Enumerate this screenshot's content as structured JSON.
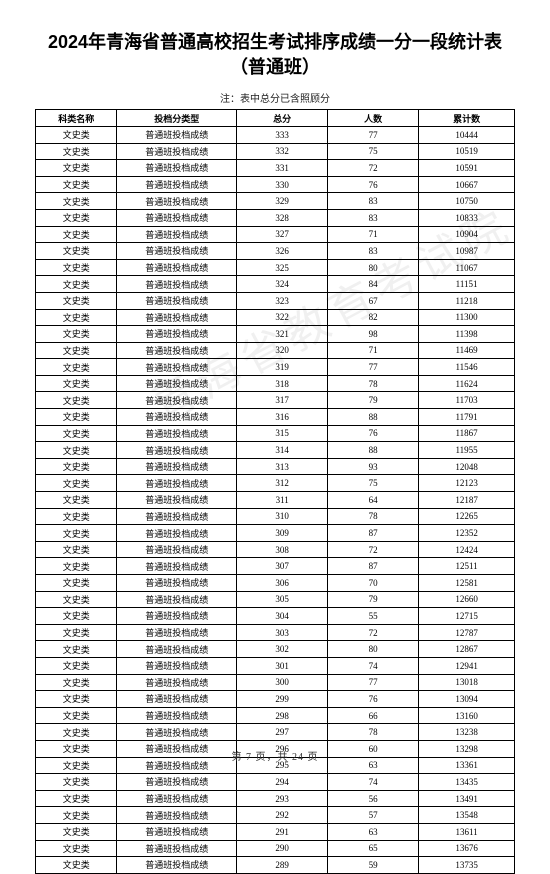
{
  "title_line1": "2024年青海省普通高校招生考试排序成绩一分一段统计表",
  "title_line2": "（普通班）",
  "note": "注：表中总分已含照顾分",
  "watermark": "青海省教育考试院",
  "headers": {
    "c1": "科类名称",
    "c2": "投档分类型",
    "c3": "总分",
    "c4": "人数",
    "c5": "累计数"
  },
  "rows": [
    {
      "c1": "文史类",
      "c2": "普通班投档成绩",
      "c3": "333",
      "c4": "77",
      "c5": "10444"
    },
    {
      "c1": "文史类",
      "c2": "普通班投档成绩",
      "c3": "332",
      "c4": "75",
      "c5": "10519"
    },
    {
      "c1": "文史类",
      "c2": "普通班投档成绩",
      "c3": "331",
      "c4": "72",
      "c5": "10591"
    },
    {
      "c1": "文史类",
      "c2": "普通班投档成绩",
      "c3": "330",
      "c4": "76",
      "c5": "10667"
    },
    {
      "c1": "文史类",
      "c2": "普通班投档成绩",
      "c3": "329",
      "c4": "83",
      "c5": "10750"
    },
    {
      "c1": "文史类",
      "c2": "普通班投档成绩",
      "c3": "328",
      "c4": "83",
      "c5": "10833"
    },
    {
      "c1": "文史类",
      "c2": "普通班投档成绩",
      "c3": "327",
      "c4": "71",
      "c5": "10904"
    },
    {
      "c1": "文史类",
      "c2": "普通班投档成绩",
      "c3": "326",
      "c4": "83",
      "c5": "10987"
    },
    {
      "c1": "文史类",
      "c2": "普通班投档成绩",
      "c3": "325",
      "c4": "80",
      "c5": "11067"
    },
    {
      "c1": "文史类",
      "c2": "普通班投档成绩",
      "c3": "324",
      "c4": "84",
      "c5": "11151"
    },
    {
      "c1": "文史类",
      "c2": "普通班投档成绩",
      "c3": "323",
      "c4": "67",
      "c5": "11218"
    },
    {
      "c1": "文史类",
      "c2": "普通班投档成绩",
      "c3": "322",
      "c4": "82",
      "c5": "11300"
    },
    {
      "c1": "文史类",
      "c2": "普通班投档成绩",
      "c3": "321",
      "c4": "98",
      "c5": "11398"
    },
    {
      "c1": "文史类",
      "c2": "普通班投档成绩",
      "c3": "320",
      "c4": "71",
      "c5": "11469"
    },
    {
      "c1": "文史类",
      "c2": "普通班投档成绩",
      "c3": "319",
      "c4": "77",
      "c5": "11546"
    },
    {
      "c1": "文史类",
      "c2": "普通班投档成绩",
      "c3": "318",
      "c4": "78",
      "c5": "11624"
    },
    {
      "c1": "文史类",
      "c2": "普通班投档成绩",
      "c3": "317",
      "c4": "79",
      "c5": "11703"
    },
    {
      "c1": "文史类",
      "c2": "普通班投档成绩",
      "c3": "316",
      "c4": "88",
      "c5": "11791"
    },
    {
      "c1": "文史类",
      "c2": "普通班投档成绩",
      "c3": "315",
      "c4": "76",
      "c5": "11867"
    },
    {
      "c1": "文史类",
      "c2": "普通班投档成绩",
      "c3": "314",
      "c4": "88",
      "c5": "11955"
    },
    {
      "c1": "文史类",
      "c2": "普通班投档成绩",
      "c3": "313",
      "c4": "93",
      "c5": "12048"
    },
    {
      "c1": "文史类",
      "c2": "普通班投档成绩",
      "c3": "312",
      "c4": "75",
      "c5": "12123"
    },
    {
      "c1": "文史类",
      "c2": "普通班投档成绩",
      "c3": "311",
      "c4": "64",
      "c5": "12187"
    },
    {
      "c1": "文史类",
      "c2": "普通班投档成绩",
      "c3": "310",
      "c4": "78",
      "c5": "12265"
    },
    {
      "c1": "文史类",
      "c2": "普通班投档成绩",
      "c3": "309",
      "c4": "87",
      "c5": "12352"
    },
    {
      "c1": "文史类",
      "c2": "普通班投档成绩",
      "c3": "308",
      "c4": "72",
      "c5": "12424"
    },
    {
      "c1": "文史类",
      "c2": "普通班投档成绩",
      "c3": "307",
      "c4": "87",
      "c5": "12511"
    },
    {
      "c1": "文史类",
      "c2": "普通班投档成绩",
      "c3": "306",
      "c4": "70",
      "c5": "12581"
    },
    {
      "c1": "文史类",
      "c2": "普通班投档成绩",
      "c3": "305",
      "c4": "79",
      "c5": "12660"
    },
    {
      "c1": "文史类",
      "c2": "普通班投档成绩",
      "c3": "304",
      "c4": "55",
      "c5": "12715"
    },
    {
      "c1": "文史类",
      "c2": "普通班投档成绩",
      "c3": "303",
      "c4": "72",
      "c5": "12787"
    },
    {
      "c1": "文史类",
      "c2": "普通班投档成绩",
      "c3": "302",
      "c4": "80",
      "c5": "12867"
    },
    {
      "c1": "文史类",
      "c2": "普通班投档成绩",
      "c3": "301",
      "c4": "74",
      "c5": "12941"
    },
    {
      "c1": "文史类",
      "c2": "普通班投档成绩",
      "c3": "300",
      "c4": "77",
      "c5": "13018"
    },
    {
      "c1": "文史类",
      "c2": "普通班投档成绩",
      "c3": "299",
      "c4": "76",
      "c5": "13094"
    },
    {
      "c1": "文史类",
      "c2": "普通班投档成绩",
      "c3": "298",
      "c4": "66",
      "c5": "13160"
    },
    {
      "c1": "文史类",
      "c2": "普通班投档成绩",
      "c3": "297",
      "c4": "78",
      "c5": "13238"
    },
    {
      "c1": "文史类",
      "c2": "普通班投档成绩",
      "c3": "296",
      "c4": "60",
      "c5": "13298"
    },
    {
      "c1": "文史类",
      "c2": "普通班投档成绩",
      "c3": "295",
      "c4": "63",
      "c5": "13361"
    },
    {
      "c1": "文史类",
      "c2": "普通班投档成绩",
      "c3": "294",
      "c4": "74",
      "c5": "13435"
    },
    {
      "c1": "文史类",
      "c2": "普通班投档成绩",
      "c3": "293",
      "c4": "56",
      "c5": "13491"
    },
    {
      "c1": "文史类",
      "c2": "普通班投档成绩",
      "c3": "292",
      "c4": "57",
      "c5": "13548"
    },
    {
      "c1": "文史类",
      "c2": "普通班投档成绩",
      "c3": "291",
      "c4": "63",
      "c5": "13611"
    },
    {
      "c1": "文史类",
      "c2": "普通班投档成绩",
      "c3": "290",
      "c4": "65",
      "c5": "13676"
    },
    {
      "c1": "文史类",
      "c2": "普通班投档成绩",
      "c3": "289",
      "c4": "59",
      "c5": "13735"
    }
  ],
  "page_current": "7",
  "page_total": "24",
  "footer_prefix": "第 ",
  "footer_mid": " 页，共 ",
  "footer_suffix": " 页"
}
